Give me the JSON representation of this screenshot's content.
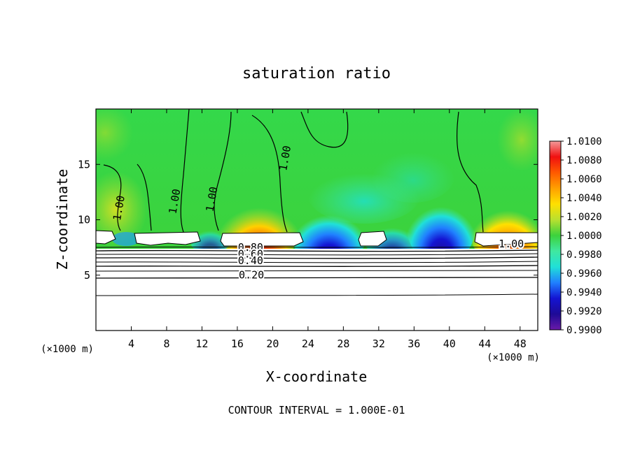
{
  "chart_data": {
    "type": "heatmap",
    "title": "saturation ratio",
    "xlabel": "X-coordinate",
    "ylabel": "Z-coordinate",
    "x_unit": "(×1000 m)",
    "y_unit": "(×1000 m)",
    "xlim": [
      0,
      50
    ],
    "ylim": [
      0,
      20
    ],
    "x_ticks": [
      4,
      8,
      12,
      16,
      20,
      24,
      28,
      32,
      36,
      40,
      44,
      48
    ],
    "y_ticks": [
      5,
      10,
      15
    ],
    "footer": "CONTOUR INTERVAL = 1.000E-01",
    "colorbar": {
      "min": 0.99,
      "max": 1.01,
      "tick_labels": [
        "1.0100",
        "1.0080",
        "1.0060",
        "1.0040",
        "1.0020",
        "1.0000",
        "0.9980",
        "0.9960",
        "0.9940",
        "0.9920",
        "0.9900"
      ],
      "colors": [
        "#f39a9a",
        "#f01010",
        "#ff5a00",
        "#ffa000",
        "#ffe000",
        "#b8e030",
        "#3cd23c",
        "#40e8a0",
        "#20e0d8",
        "#2080ff",
        "#1414d2",
        "#1e0a96",
        "#6a1aa8"
      ]
    },
    "contour_labels": [
      {
        "text": "1.00",
        "x": 3.0,
        "z": 11.0
      },
      {
        "text": "1.00",
        "x": 9.3,
        "z": 11.6
      },
      {
        "text": "1.00",
        "x": 13.5,
        "z": 11.8
      },
      {
        "text": "1.00",
        "x": 21.8,
        "z": 15.5
      },
      {
        "text": "1.00",
        "x": 47.0,
        "z": 7.5
      },
      {
        "text": "0.80",
        "x": 17.5,
        "z": 7.2
      },
      {
        "text": "0.60",
        "x": 17.5,
        "z": 6.6
      },
      {
        "text": "0.40",
        "x": 17.5,
        "z": 6.0
      },
      {
        "text": "0.20",
        "x": 17.6,
        "z": 4.7
      }
    ]
  }
}
